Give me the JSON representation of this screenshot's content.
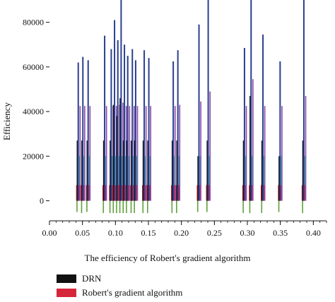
{
  "chart_data": {
    "type": "bar",
    "xlabel": "The efficiency of Robert's gradient algorithm",
    "ylabel": "Efficiency",
    "xlim": [
      0.0,
      0.42
    ],
    "ylim": [
      -9000,
      90000
    ],
    "xticks": [
      "0.00",
      "0.05",
      "0.10",
      "0.15",
      "0.20",
      "0.25",
      "0.30",
      "0.35",
      "0.40"
    ],
    "yticks": [
      "0",
      "20000",
      "40000",
      "60000",
      "80000"
    ],
    "legend_position": "bottom-left",
    "colors": {
      "dark_green": "#2f6b25",
      "green": "#5ea03a",
      "red": "#d6263a",
      "black": "#111111",
      "blue": "#2b3f8f",
      "purple": "#8a4aa8",
      "teal": "#3f8fa0"
    },
    "series": [
      {
        "name": "DRN",
        "color": "#111111"
      },
      {
        "name": "Robert's gradient algorithm",
        "color": "#d6263a"
      }
    ],
    "bar_clusters": [
      {
        "x": 0.043,
        "values": [
          -5000,
          7000,
          27000,
          62000,
          42500
        ]
      },
      {
        "x": 0.05,
        "values": [
          -5500,
          7000,
          27000,
          64500,
          42500
        ]
      },
      {
        "x": 0.058,
        "values": [
          -5000,
          7000,
          27000,
          63000,
          42500
        ]
      },
      {
        "x": 0.083,
        "values": [
          -5500,
          7000,
          27000,
          74000,
          42500
        ]
      },
      {
        "x": 0.093,
        "values": [
          -5500,
          7000,
          27000,
          68000,
          42500
        ]
      },
      {
        "x": 0.098,
        "values": [
          -5500,
          7000,
          43000,
          81000,
          42500
        ]
      },
      {
        "x": 0.103,
        "values": [
          -5500,
          7000,
          38000,
          72000,
          43000
        ]
      },
      {
        "x": 0.108,
        "values": [
          -5500,
          7000,
          46000,
          90000,
          44000
        ]
      },
      {
        "x": 0.113,
        "values": [
          -5500,
          7000,
          27000,
          70000,
          42500
        ]
      },
      {
        "x": 0.118,
        "values": [
          -5500,
          7000,
          27000,
          65000,
          42500
        ]
      },
      {
        "x": 0.125,
        "values": [
          -5500,
          7000,
          27000,
          68000,
          42500
        ]
      },
      {
        "x": 0.13,
        "values": [
          -5500,
          7000,
          27000,
          63000,
          42500
        ]
      },
      {
        "x": 0.143,
        "values": [
          -5500,
          7000,
          27000,
          67500,
          42500
        ]
      },
      {
        "x": 0.15,
        "values": [
          -5500,
          7000,
          27000,
          64000,
          42500
        ]
      },
      {
        "x": 0.187,
        "values": [
          -5500,
          7000,
          27000,
          62500,
          42500
        ]
      },
      {
        "x": 0.194,
        "values": [
          -5500,
          7000,
          27000,
          67500,
          43000
        ]
      },
      {
        "x": 0.226,
        "values": [
          -5000,
          7000,
          20000,
          79000,
          44500
        ]
      },
      {
        "x": 0.24,
        "values": [
          -5000,
          7000,
          27000,
          90000,
          49000
        ]
      },
      {
        "x": 0.295,
        "values": [
          -5500,
          7000,
          27000,
          68500,
          42500
        ]
      },
      {
        "x": 0.305,
        "values": [
          -5500,
          7000,
          47000,
          90000,
          54500
        ]
      },
      {
        "x": 0.323,
        "values": [
          -5500,
          7000,
          27000,
          74500,
          42500
        ]
      },
      {
        "x": 0.349,
        "values": [
          -5000,
          7000,
          20000,
          62500,
          42500
        ]
      },
      {
        "x": 0.385,
        "values": [
          -5500,
          7000,
          27000,
          90000,
          47000
        ]
      }
    ],
    "legend": [
      {
        "label": "DRN",
        "color": "#111111"
      },
      {
        "label": "Robert's gradient algorithm",
        "color": "#d6263a"
      }
    ]
  }
}
